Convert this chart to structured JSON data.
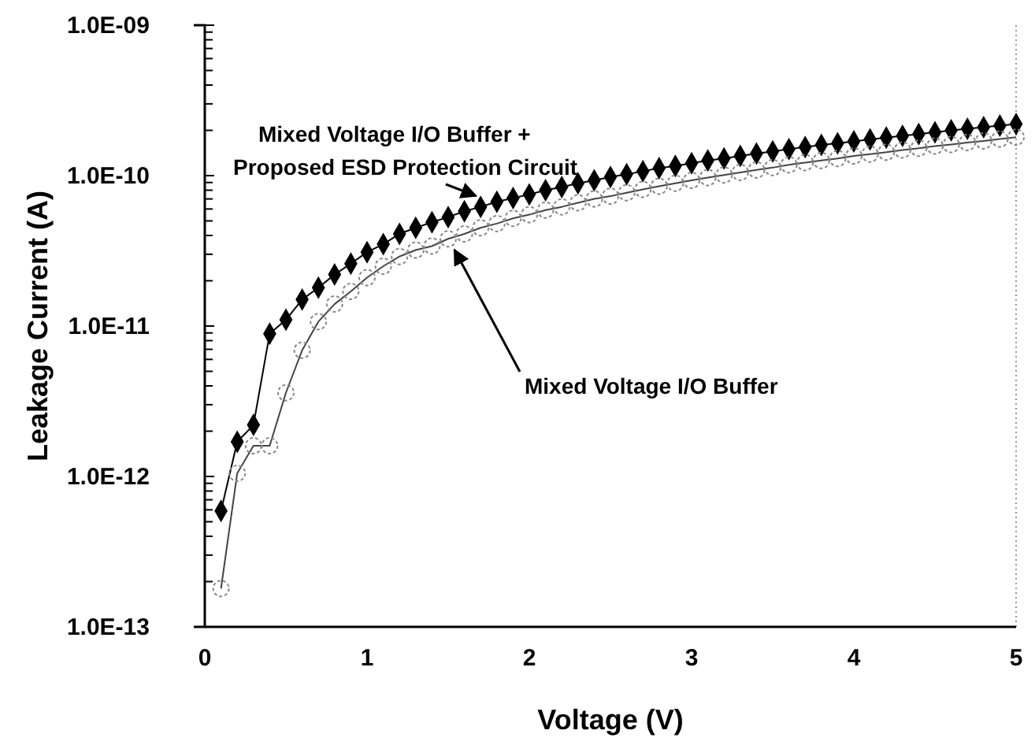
{
  "chart_data": {
    "type": "line",
    "xlabel": "Voltage (V)",
    "ylabel": "Leakage Current (A)",
    "log": "y",
    "x": [
      0.1,
      0.2,
      0.3,
      0.4,
      0.5,
      0.6,
      0.7,
      0.8,
      0.9,
      1.0,
      1.1,
      1.2,
      1.3,
      1.4,
      1.5,
      1.6,
      1.7,
      1.8,
      1.9,
      2.0,
      2.1,
      2.2,
      2.3,
      2.4,
      2.5,
      2.6,
      2.7,
      2.8,
      2.9,
      3.0,
      3.1,
      3.2,
      3.3,
      3.4,
      3.5,
      3.6,
      3.7,
      3.8,
      3.9,
      4.0,
      4.1,
      4.2,
      4.3,
      4.4,
      4.5,
      4.6,
      4.7,
      4.8,
      4.9,
      5.0
    ],
    "xlim": [
      0,
      5
    ],
    "xticks": [
      0,
      1,
      2,
      3,
      4,
      5
    ],
    "ylim": [
      1e-13,
      1e-09
    ],
    "yticks": [
      {
        "value": 1e-13,
        "label": "1.0E-13"
      },
      {
        "value": 1e-12,
        "label": "1.0E-12"
      },
      {
        "value": 1e-11,
        "label": "1.0E-11"
      },
      {
        "value": 1e-10,
        "label": "1.0E-10"
      },
      {
        "value": 1e-09,
        "label": "1.0E-09"
      }
    ],
    "grid": false,
    "line_style": "solid",
    "series": [
      {
        "name": "Mixed Voltage I/O Buffer + Proposed ESD Protection Circuit",
        "color": "#000000",
        "marker": "diamond",
        "values": [
          5.9e-13,
          1.7e-12,
          2.2e-12,
          8.9e-12,
          1.1e-11,
          1.5e-11,
          1.8e-11,
          2.2e-11,
          2.6e-11,
          3.1e-11,
          3.5e-11,
          4.1e-11,
          4.5e-11,
          4.9e-11,
          5.3e-11,
          5.8e-11,
          6.2e-11,
          6.7e-11,
          7.1e-11,
          7.5e-11,
          8e-11,
          8.4e-11,
          8.9e-11,
          9.3e-11,
          9.8e-11,
          1.02e-10,
          1.07e-10,
          1.12e-10,
          1.16e-10,
          1.21e-10,
          1.26e-10,
          1.3e-10,
          1.35e-10,
          1.4e-10,
          1.45e-10,
          1.5e-10,
          1.55e-10,
          1.6e-10,
          1.64e-10,
          1.69e-10,
          1.74e-10,
          1.79e-10,
          1.84e-10,
          1.89e-10,
          1.94e-10,
          2e-10,
          2.05e-10,
          2.1e-10,
          2.15e-10,
          2.2e-10
        ]
      },
      {
        "name": "Mixed Voltage I/O Buffer",
        "color": "#888888",
        "marker": "circle",
        "values": [
          1.8e-13,
          1.05e-12,
          1.6e-12,
          1.6e-12,
          3.6e-12,
          6.9e-12,
          1.07e-11,
          1.4e-11,
          1.7e-11,
          2.1e-11,
          2.5e-11,
          2.9e-11,
          3.2e-11,
          3.4e-11,
          3.8e-11,
          4.1e-11,
          4.5e-11,
          4.8e-11,
          5.2e-11,
          5.5e-11,
          5.9e-11,
          6.2e-11,
          6.6e-11,
          7e-11,
          7.3e-11,
          7.7e-11,
          8.1e-11,
          8.5e-11,
          8.9e-11,
          9.3e-11,
          9.7e-11,
          1.01e-10,
          1.05e-10,
          1.09e-10,
          1.13e-10,
          1.18e-10,
          1.22e-10,
          1.26e-10,
          1.3e-10,
          1.35e-10,
          1.39e-10,
          1.43e-10,
          1.48e-10,
          1.52e-10,
          1.57e-10,
          1.61e-10,
          1.66e-10,
          1.7e-10,
          1.75e-10,
          1.8e-10
        ]
      }
    ]
  }
}
